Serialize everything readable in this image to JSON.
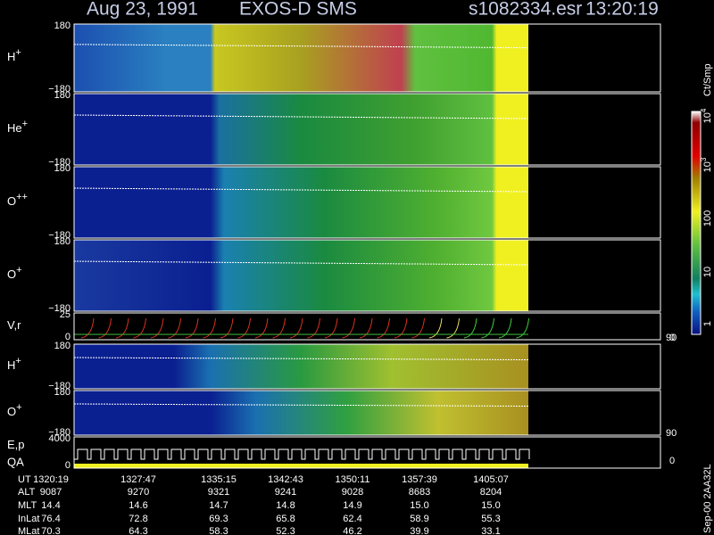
{
  "header": {
    "date": "Aug 23, 1991",
    "instrument": "EXOS-D SMS",
    "file": "s1082334.esr",
    "time": "13:20:19"
  },
  "panels": [
    {
      "label": "H",
      "sup": "+",
      "top": "180",
      "bottom": "−180"
    },
    {
      "label": "He",
      "sup": "+",
      "top": "180",
      "bottom": "−180"
    },
    {
      "label": "O",
      "sup": "++",
      "top": "180",
      "bottom": "−180"
    },
    {
      "label": "O",
      "sup": "+",
      "top": "180",
      "bottom": "−180"
    },
    {
      "label": "V,r",
      "top": "25",
      "bottom": "0",
      "right_top": "90",
      "right_bottom": "0"
    },
    {
      "label": "H",
      "sup": "+",
      "top": "180",
      "bottom": "−180"
    },
    {
      "label": "O",
      "sup": "+",
      "top": "180",
      "bottom": "−180",
      "right_top": "90"
    },
    {
      "label": "E,p",
      "label2": "QA",
      "top": "4000",
      "bottom": "0",
      "right_bottom": "0"
    }
  ],
  "colorbar": {
    "unit": "Ct/Smp",
    "labels": [
      {
        "base": "10",
        "exp": "4"
      },
      {
        "base": "10",
        "exp": "3"
      },
      {
        "base": "100"
      },
      {
        "base": "10"
      },
      {
        "base": "1"
      }
    ]
  },
  "footer_table": {
    "rows": [
      [
        "UT",
        "1320:19",
        "1327:47",
        "1335:15",
        "1342:43",
        "1350:11",
        "1357:39",
        "1405:07"
      ],
      [
        "ALT",
        "9087",
        "9270",
        "9321",
        "9241",
        "9028",
        "8683",
        "8204"
      ],
      [
        "MLT",
        "14.4",
        "14.6",
        "14.7",
        "14.8",
        "14.9",
        "15.0",
        "15.0"
      ],
      [
        "InLat",
        "76.4",
        "72.8",
        "69.3",
        "65.8",
        "62.4",
        "58.9",
        "55.3"
      ],
      [
        "MLat",
        "70.3",
        "64.3",
        "58.3",
        "52.3",
        "46.2",
        "39.9",
        "33.1"
      ]
    ]
  },
  "stamp": "Sep-00  2AA32L"
}
